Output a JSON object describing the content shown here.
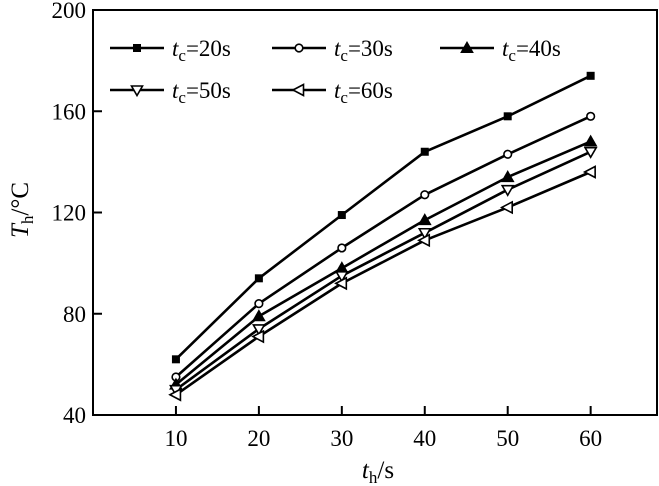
{
  "chart_data": {
    "type": "line",
    "x": [
      10,
      20,
      30,
      40,
      50,
      60
    ],
    "xlim": [
      0,
      68
    ],
    "ylim": [
      40,
      200
    ],
    "xticks": [
      10,
      20,
      30,
      40,
      50,
      60
    ],
    "yticks": [
      40,
      80,
      120,
      160,
      200
    ],
    "xlabel": {
      "var": "t",
      "sub": "h",
      "unit": "/s"
    },
    "ylabel": {
      "var": "T",
      "sub": "h",
      "unit": "/°C"
    },
    "grid": false,
    "legend_position": "top-left",
    "series": [
      {
        "var": "t",
        "sub": "c",
        "value_text": "=20s",
        "marker": "square-filled",
        "values": [
          62,
          94,
          119,
          144,
          158,
          174
        ]
      },
      {
        "var": "t",
        "sub": "c",
        "value_text": "=30s",
        "marker": "circle-open",
        "values": [
          55,
          84,
          106,
          127,
          143,
          158
        ]
      },
      {
        "var": "t",
        "sub": "c",
        "value_text": "=40s",
        "marker": "triangle-up-filled",
        "values": [
          52,
          79,
          98,
          117,
          134,
          148
        ]
      },
      {
        "var": "t",
        "sub": "c",
        "value_text": "=50s",
        "marker": "triangle-down-open",
        "values": [
          50,
          74,
          95,
          112,
          129,
          144
        ]
      },
      {
        "var": "t",
        "sub": "c",
        "value_text": "=60s",
        "marker": "triangle-left-open",
        "values": [
          48,
          71,
          92,
          109,
          122,
          136
        ]
      }
    ],
    "line_color": "#000000"
  }
}
